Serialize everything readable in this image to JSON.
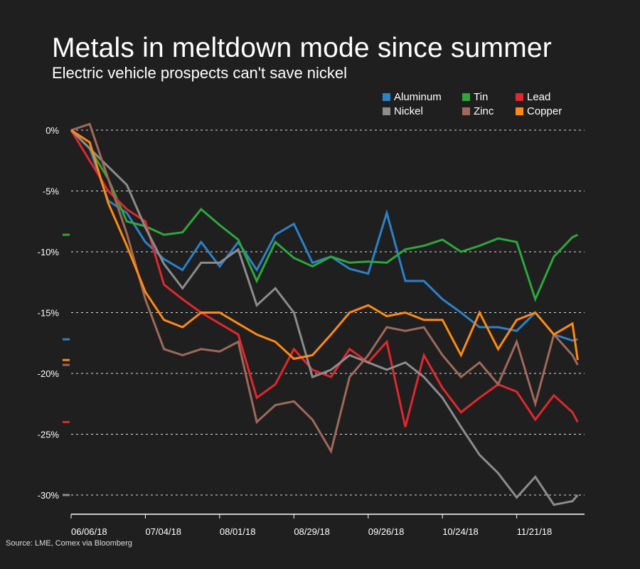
{
  "title": "Metals in meltdown mode since summer",
  "subtitle": "Electric vehicle prospects can't save nickel",
  "source": "Source: LME, Comex via Bloomberg",
  "chart_data": {
    "type": "line",
    "title": "Metals in meltdown mode since summer",
    "subtitle": "Electric vehicle prospects can't save nickel",
    "xlabel": "",
    "ylabel": "",
    "ylim": [
      -31,
      1.5
    ],
    "yticks": [
      0,
      -5,
      -10,
      -15,
      -20,
      -25,
      -30
    ],
    "ytick_labels": [
      "0%",
      "-5%",
      "-10%",
      "-15%",
      "-20%",
      "-25%",
      "-30%"
    ],
    "xticks": [
      "2018-06-06",
      "2018-07-04",
      "2018-08-01",
      "2018-08-29",
      "2018-09-26",
      "2018-10-24",
      "2018-11-21"
    ],
    "xtick_labels": [
      "06/06/18",
      "07/04/18",
      "08/01/18",
      "08/29/18",
      "09/26/18",
      "10/24/18",
      "11/21/18"
    ],
    "grid": "horizontal dotted",
    "legend_position": "top-right",
    "x": [
      "2018-06-06",
      "2018-06-13",
      "2018-06-20",
      "2018-06-27",
      "2018-07-04",
      "2018-07-11",
      "2018-07-18",
      "2018-07-25",
      "2018-08-01",
      "2018-08-08",
      "2018-08-15",
      "2018-08-22",
      "2018-08-29",
      "2018-09-05",
      "2018-09-12",
      "2018-09-19",
      "2018-09-26",
      "2018-10-03",
      "2018-10-10",
      "2018-10-17",
      "2018-10-24",
      "2018-10-31",
      "2018-11-07",
      "2018-11-14",
      "2018-11-21",
      "2018-11-28",
      "2018-12-05",
      "2018-12-12",
      "2018-12-14"
    ],
    "series": [
      {
        "name": "Aluminum",
        "color": "#2b82c9",
        "values": [
          0,
          -1.5,
          -5.8,
          -6.8,
          -9.2,
          -10.6,
          -11.5,
          -9.2,
          -11.2,
          -9.2,
          -11.5,
          -8.6,
          -7.7,
          -10.9,
          -10.4,
          -11.4,
          -11.8,
          -6.8,
          -12.4,
          -12.4,
          -13.9,
          -15,
          -16.2,
          -16.2,
          -16.5,
          -15,
          -16.8,
          -17.3,
          -17.2
        ]
      },
      {
        "name": "Tin",
        "color": "#2ca83a",
        "values": [
          0,
          -1.5,
          -4,
          -7.5,
          -7.9,
          -8.6,
          -8.4,
          -6.5,
          -7.8,
          -9,
          -12.4,
          -9.2,
          -10.5,
          -11.2,
          -10.4,
          -10.9,
          -10.8,
          -10.9,
          -9.8,
          -9.5,
          -9,
          -10,
          -9.5,
          -8.9,
          -9.2,
          -13.9,
          -10.4,
          -8.8,
          -8.6
        ]
      },
      {
        "name": "Lead",
        "color": "#e0282e",
        "values": [
          0,
          -2.5,
          -5,
          -6.5,
          -7.5,
          -12.7,
          -13.9,
          -15,
          -15.9,
          -16.8,
          -22,
          -20.9,
          -18,
          -19.7,
          -20.3,
          -18,
          -19.1,
          -17.4,
          -24.4,
          -18.5,
          -21.2,
          -23.2,
          -22,
          -20.9,
          -21.5,
          -23.8,
          -21.8,
          -23.2,
          -24
        ]
      },
      {
        "name": "Nickel",
        "color": "#8c8c8c",
        "values": [
          0,
          -1.5,
          -3,
          -4.5,
          -8,
          -11,
          -13,
          -10.9,
          -10.9,
          -9.8,
          -14.4,
          -13,
          -15,
          -20.3,
          -19.7,
          -18.5,
          -19.1,
          -19.7,
          -19.1,
          -20.3,
          -22,
          -24.4,
          -26.7,
          -28.2,
          -30.2,
          -28.5,
          -30.8,
          -30.5,
          -30
        ]
      },
      {
        "name": "Zinc",
        "color": "#a0695a",
        "values": [
          0,
          0.5,
          -4,
          -8.5,
          -13.9,
          -18,
          -18.5,
          -18,
          -18.2,
          -17.4,
          -24,
          -22.6,
          -22.3,
          -23.8,
          -26.4,
          -20.3,
          -18.5,
          -16.2,
          -16.5,
          -16.2,
          -18.5,
          -20.3,
          -19.1,
          -20.9,
          -17.4,
          -22.5,
          -16.8,
          -18.5,
          -19.3
        ]
      },
      {
        "name": "Copper",
        "color": "#ff8a12",
        "values": [
          0,
          -1,
          -6,
          -9.5,
          -13.3,
          -15.6,
          -16.2,
          -15,
          -15,
          -15.9,
          -16.8,
          -17.4,
          -18.8,
          -18.5,
          -16.8,
          -15,
          -14.4,
          -15.3,
          -15,
          -15.6,
          -15.6,
          -18.5,
          -15,
          -18,
          -15.6,
          -15,
          -16.8,
          -15.9,
          -18.9
        ]
      }
    ]
  }
}
